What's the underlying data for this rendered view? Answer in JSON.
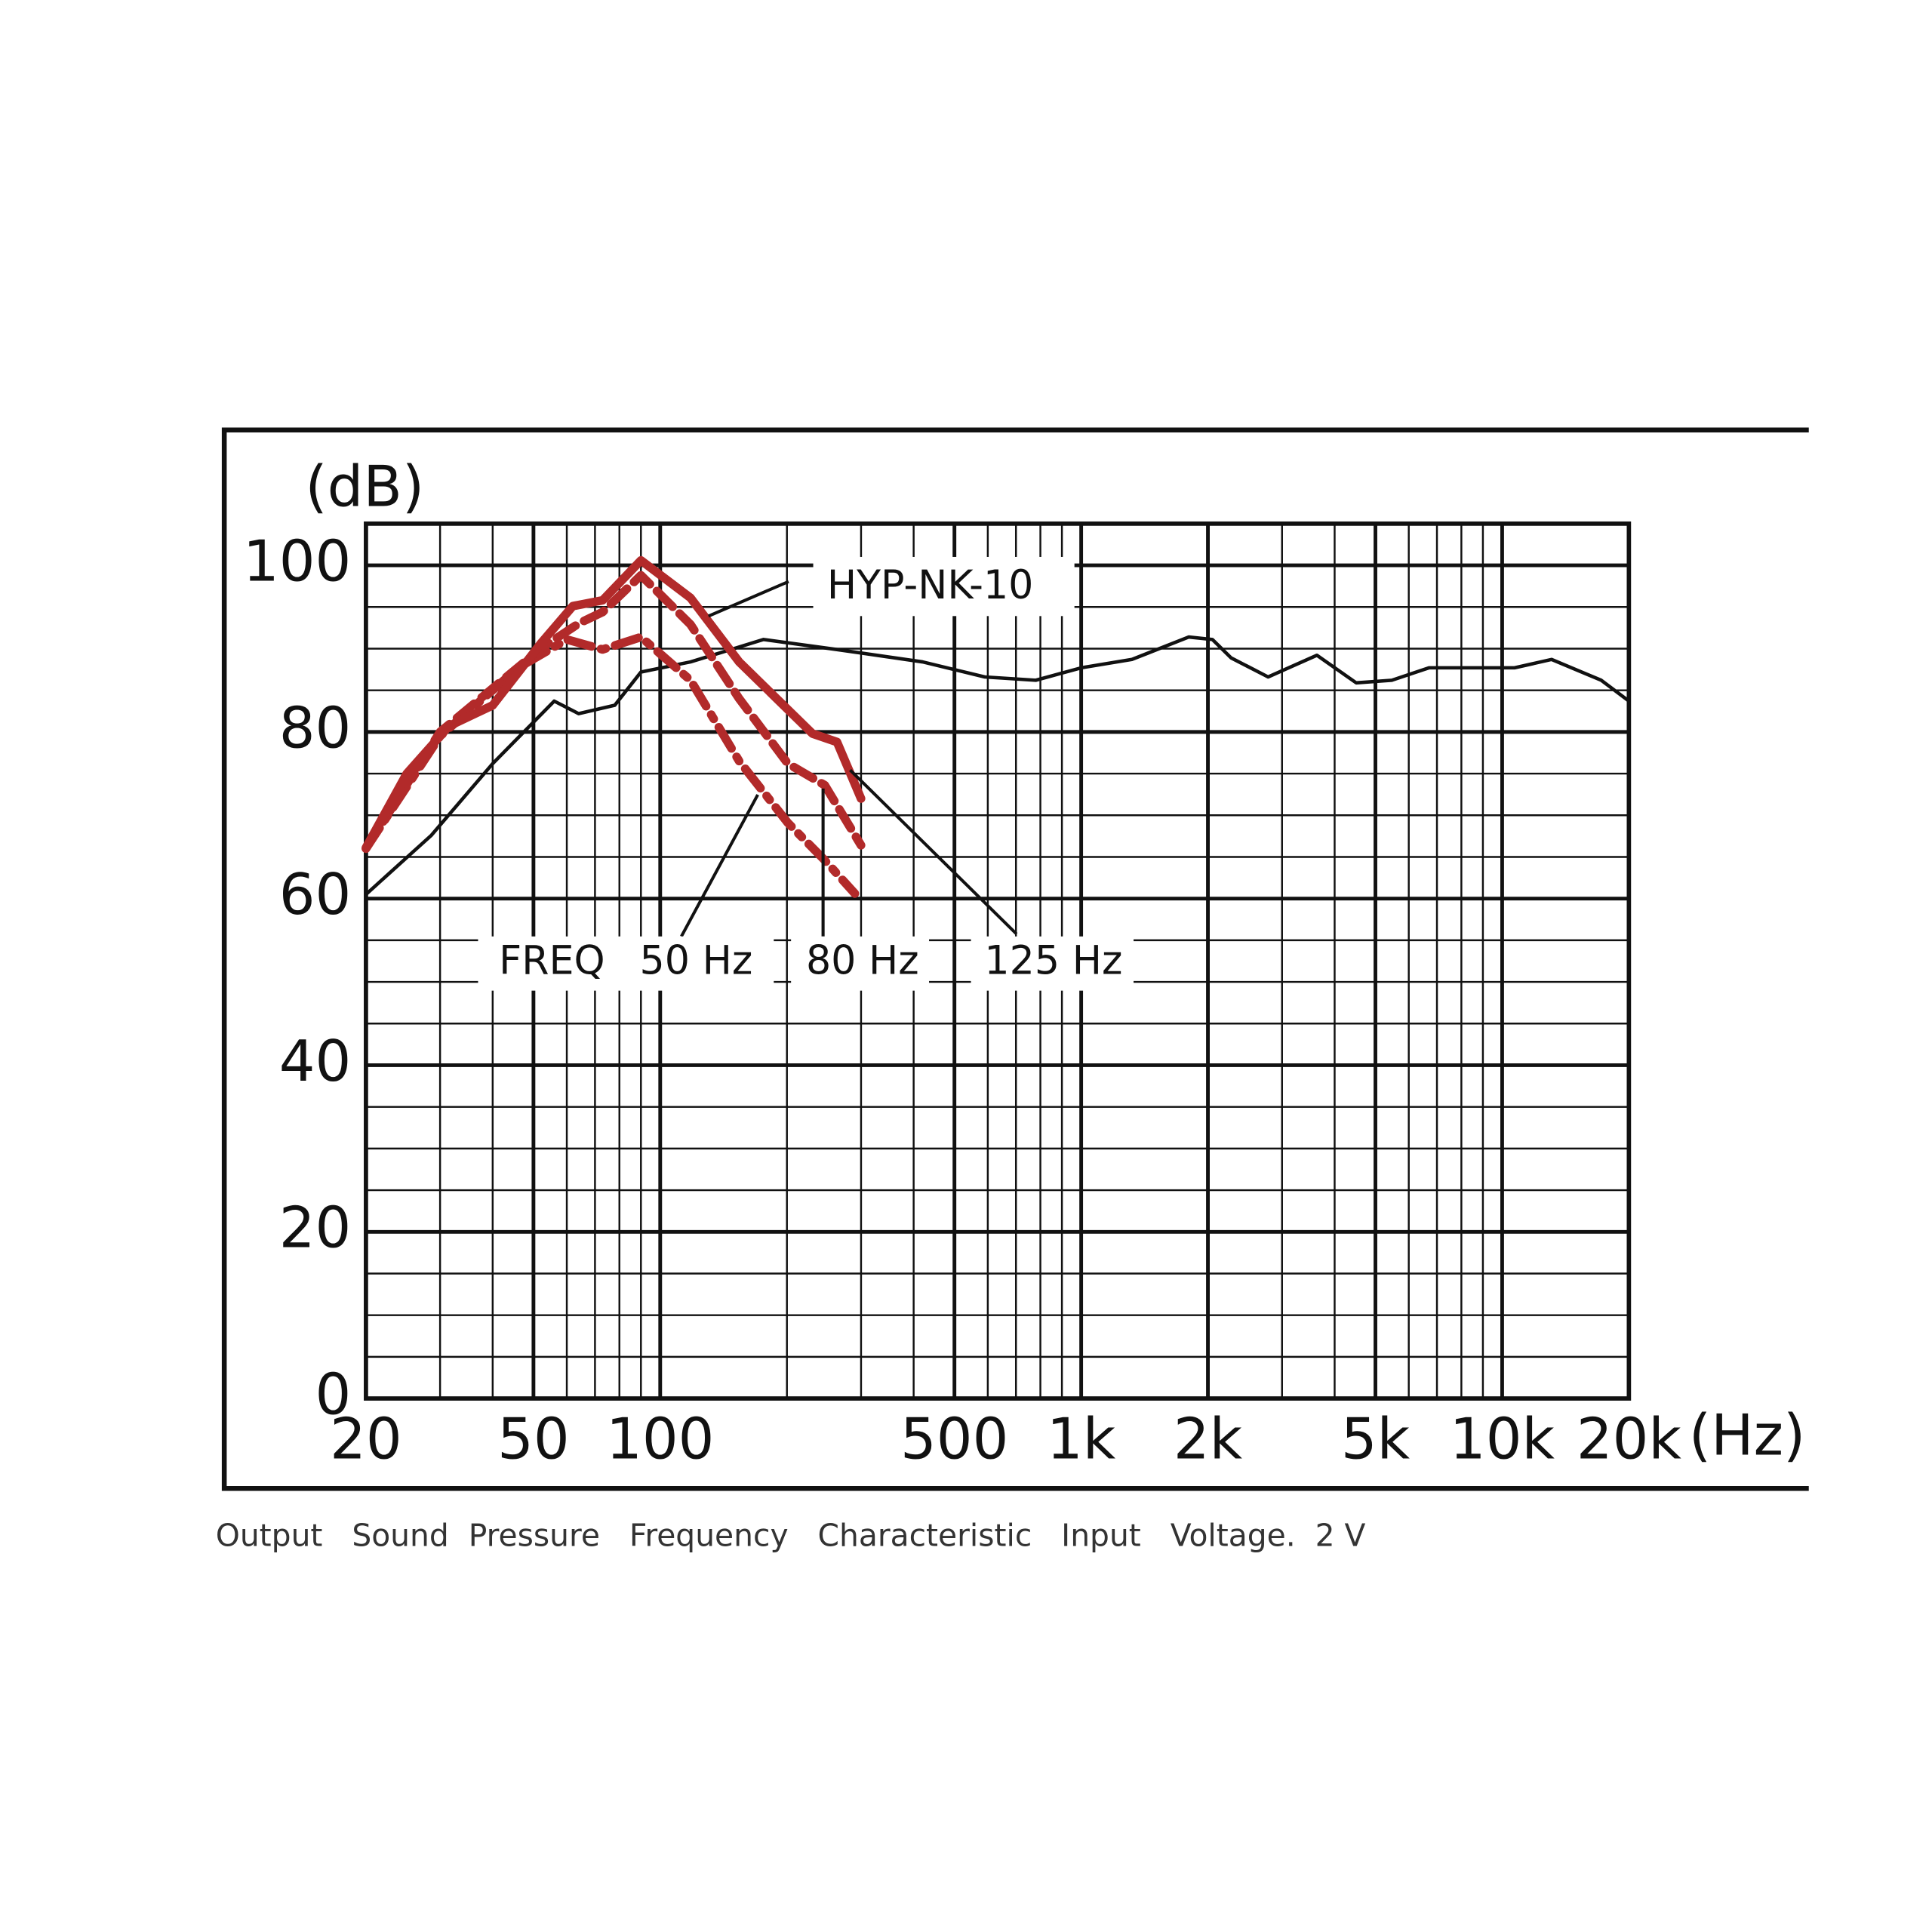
{
  "chart_data": {
    "type": "line",
    "y_label": "(dB)",
    "x_label": "(Hz)",
    "caption": "Output   Sound  Pressure   Frequency   Characteristic   Input   Voltage.  2 V",
    "xscale": "log",
    "xlim": [
      20,
      20000
    ],
    "ylim": [
      0,
      105
    ],
    "xticks": [
      20,
      50,
      100,
      500,
      {
        "value": 1000,
        "label": "1k"
      },
      {
        "value": 2000,
        "label": "2k"
      },
      {
        "value": 5000,
        "label": "5k"
      },
      {
        "value": 10000,
        "label": "10k"
      },
      {
        "value": 20000,
        "label": "20k"
      }
    ],
    "yticks": [
      0,
      20,
      40,
      60,
      80,
      100
    ],
    "x_minor_grid": [
      30,
      40,
      60,
      70,
      80,
      90,
      200,
      300,
      400,
      600,
      700,
      800,
      900,
      3000,
      4000,
      6000,
      7000,
      8000,
      9000
    ],
    "y_minor_grid": [
      5,
      10,
      15,
      25,
      30,
      35,
      45,
      50,
      55,
      65,
      70,
      75,
      85,
      90,
      95
    ],
    "grid": true,
    "annotations": [
      "HYP-NK-10",
      "FREQ"
    ],
    "series": [
      {
        "name": "HYP-NK-10",
        "color": "#111111",
        "dash": "solid",
        "x": [
          20,
          28.6,
          40,
          56,
          64,
          78,
          90,
          118,
          154,
          176,
          262,
          420,
          590,
          780,
          1000,
          1320,
          1800,
          2050,
          2270,
          2780,
          3630,
          4500,
          5470,
          6700,
          8750,
          10700,
          13100,
          17200,
          20000
        ],
        "values": [
          60.5,
          67.6,
          76.2,
          83.7,
          82.2,
          83.2,
          87.2,
          88.4,
          90.2,
          91.1,
          89.9,
          88.4,
          86.6,
          86.2,
          87.7,
          88.7,
          91.4,
          91.1,
          88.9,
          86.6,
          89.2,
          85.9,
          86.2,
          87.7,
          87.7,
          87.7,
          88.7,
          86.2,
          83.7
        ]
      },
      {
        "name": "50 Hz",
        "color": "#b22a2a",
        "dash": "dashdot",
        "x": [
          20,
          30,
          46,
          60,
          73,
          90,
          118,
          154,
          201,
          246,
          290
        ],
        "values": [
          66,
          79.5,
          87.7,
          91.1,
          89.9,
          91.4,
          86.2,
          76.5,
          69.1,
          64.6,
          60.6
        ]
      },
      {
        "name": "80 Hz",
        "color": "#b22a2a",
        "dash": "dashed",
        "x": [
          20,
          30,
          52,
          64,
          73,
          90,
          118,
          154,
          201,
          246,
          300
        ],
        "values": [
          66,
          80,
          90,
          93,
          94.4,
          98.8,
          92.9,
          84,
          76.2,
          73.6,
          66.4
        ]
      },
      {
        "name": "125 Hz",
        "color": "#b22a2a",
        "dash": "solid",
        "x": [
          20,
          25,
          31.5,
          40,
          52,
          62,
          73,
          90,
          118,
          154,
          230,
          263,
          300
        ],
        "values": [
          66.1,
          75,
          80.7,
          83.2,
          90.6,
          95.1,
          95.8,
          100.6,
          96.1,
          88.4,
          79.8,
          78.8,
          72
        ]
      }
    ]
  }
}
